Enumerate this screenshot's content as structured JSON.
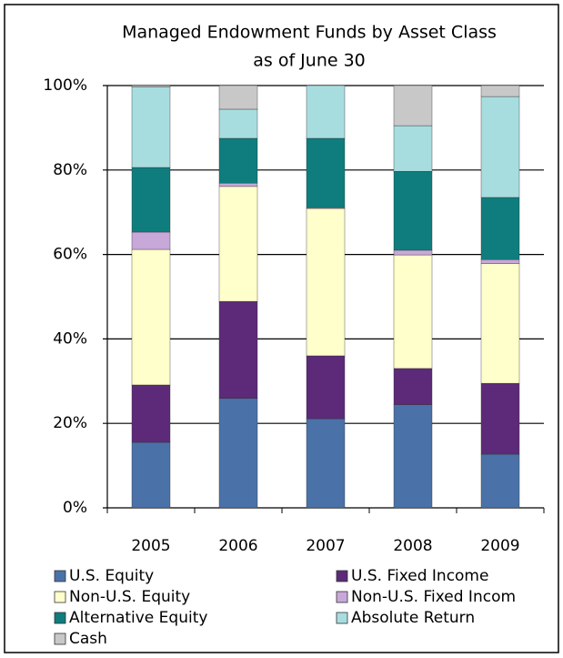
{
  "chart_data": {
    "type": "stacked_bar",
    "title": "Managed Endowment Funds by Asset Class",
    "subtitle": "as of June 30",
    "categories": [
      "2005",
      "2006",
      "2007",
      "2008",
      "2009"
    ],
    "series": [
      {
        "name": "U.S. Equity",
        "color": "#4a72a8",
        "values": [
          15.5,
          25.9,
          21.1,
          24.4,
          12.7
        ]
      },
      {
        "name": "U.S. Fixed Income",
        "color": "#5c2a78",
        "values": [
          13.6,
          23.0,
          14.9,
          8.6,
          16.8
        ]
      },
      {
        "name": "Non-U.S. Equity",
        "color": "#ffffcc",
        "values": [
          32.1,
          27.2,
          34.9,
          26.9,
          28.3
        ]
      },
      {
        "name": "Non-U.S. Fixed Incom",
        "color": "#c8a8d8",
        "values": [
          4.1,
          0.8,
          0.2,
          1.1,
          1.0
        ]
      },
      {
        "name": "Alternative Equity",
        "color": "#0f7d7d",
        "values": [
          15.3,
          10.6,
          16.4,
          18.7,
          14.7
        ]
      },
      {
        "name": "Absolute Return",
        "color": "#a8dde0",
        "values": [
          19.1,
          6.9,
          12.5,
          10.8,
          23.9
        ]
      },
      {
        "name": "Cash",
        "color": "#c8c8c8",
        "values": [
          0.3,
          5.6,
          0,
          9.5,
          2.6
        ]
      }
    ],
    "ylim": [
      0,
      100
    ],
    "yticks": [
      {
        "value": 0,
        "label": "0%"
      },
      {
        "value": 20,
        "label": "20%"
      },
      {
        "value": 40,
        "label": "40%"
      },
      {
        "value": 60,
        "label": "60%"
      },
      {
        "value": 80,
        "label": "80%"
      },
      {
        "value": 100,
        "label": "100%"
      }
    ],
    "grid": true
  }
}
